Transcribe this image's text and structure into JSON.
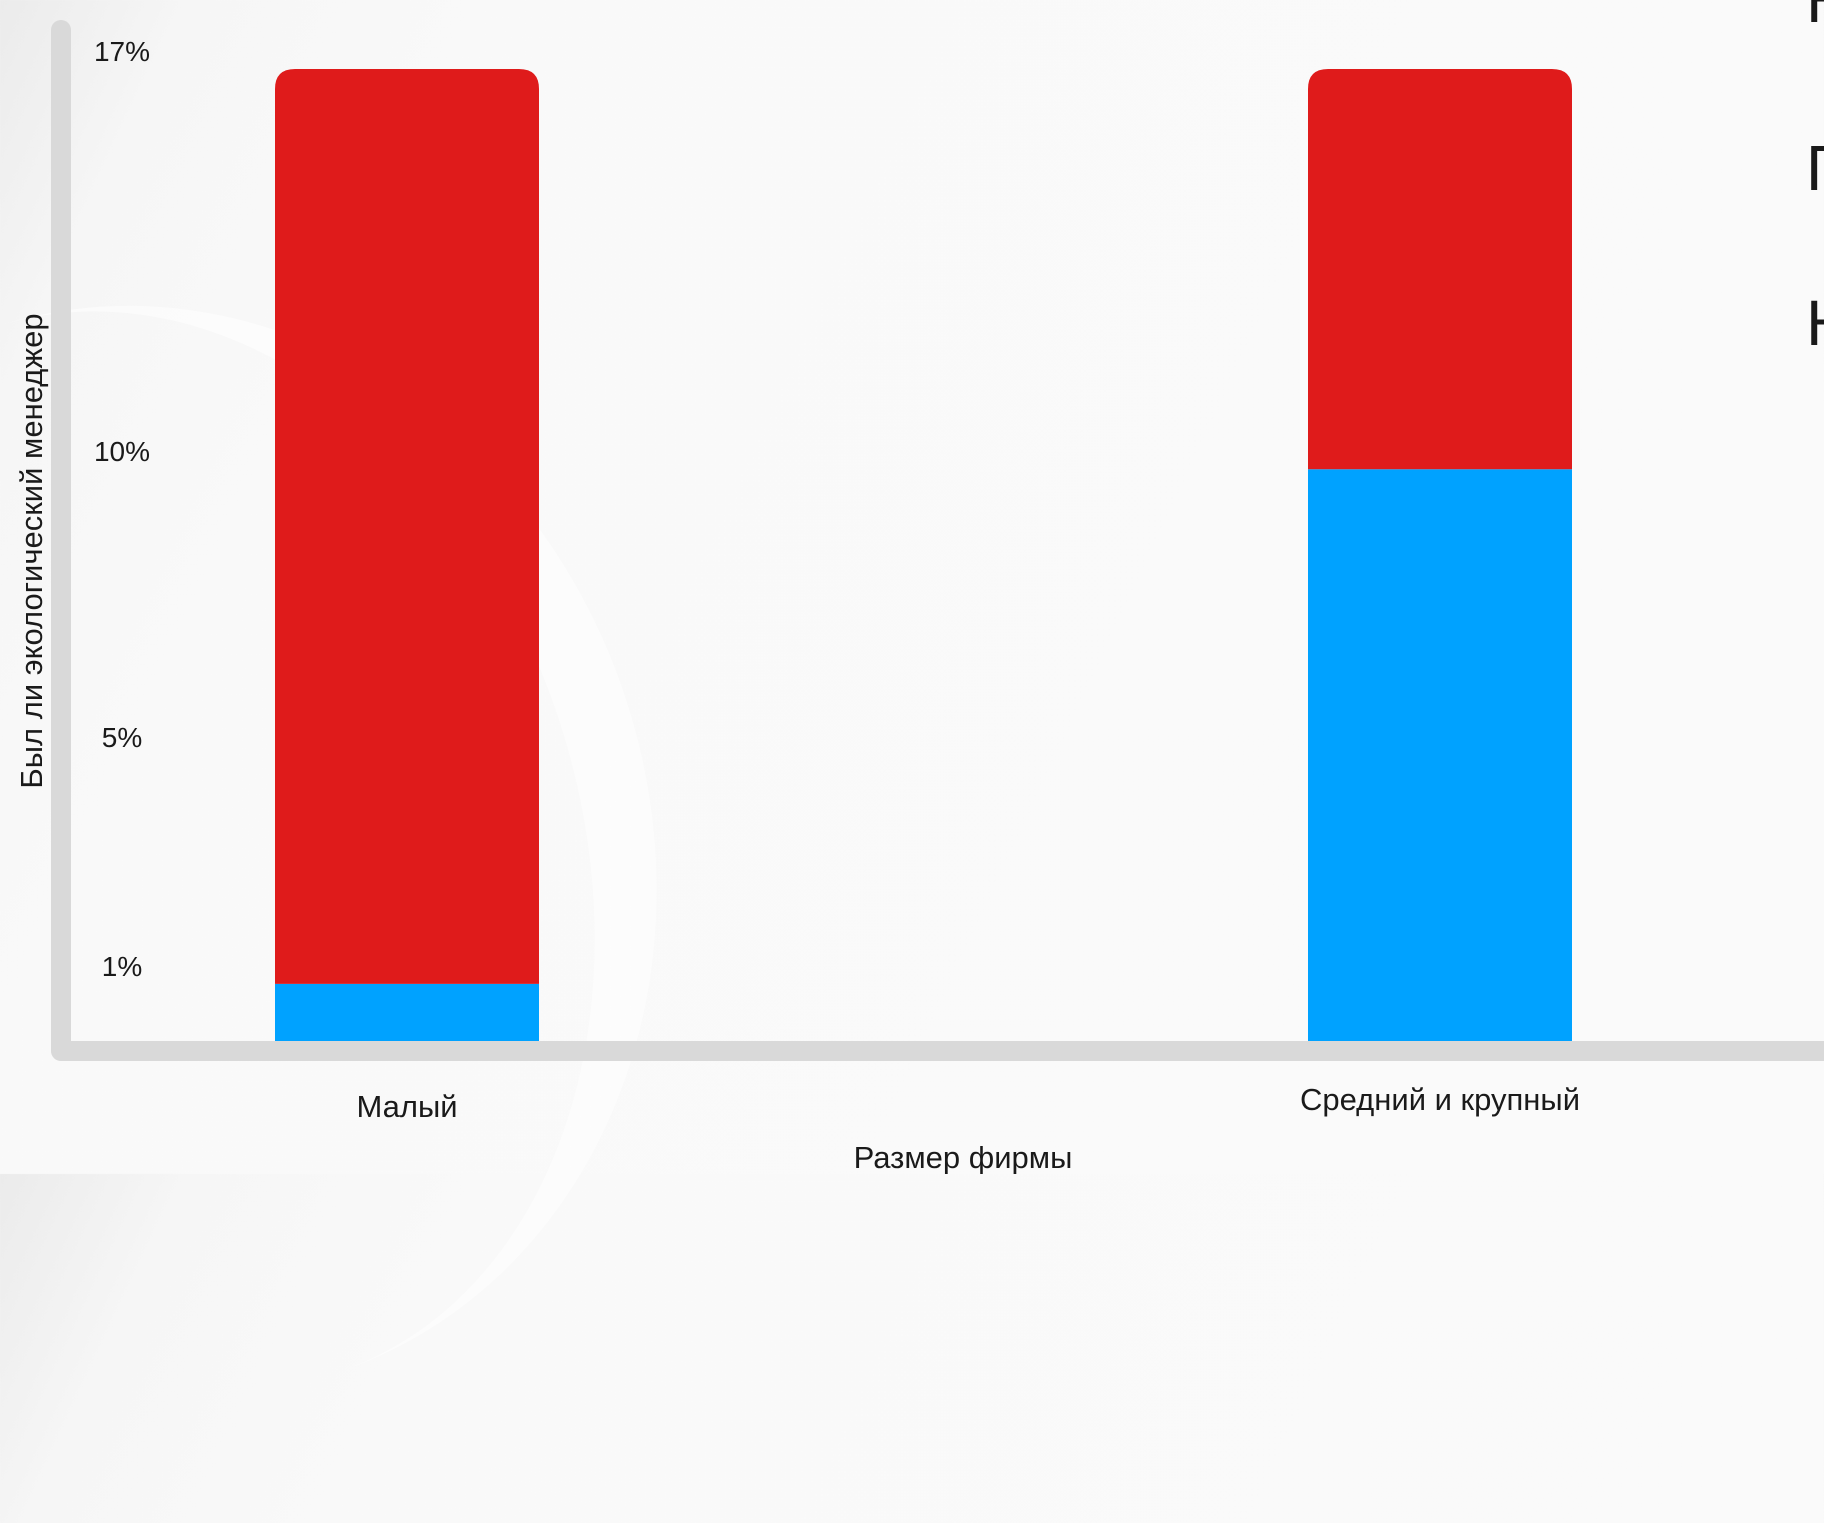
{
  "chart_data": {
    "type": "bar",
    "stacked": true,
    "categories": [
      "Малый",
      "Средний и крупный"
    ],
    "series": [
      {
        "color": "#00a2ff",
        "values": [
          1,
          10
        ]
      },
      {
        "color": "#df1b1b",
        "values": [
          16,
          7
        ]
      }
    ],
    "xlabel": "Размер фирмы",
    "ylabel": "Был ли экологический менеджер",
    "yticks": [
      "1%",
      "5%",
      "10%",
      "17%"
    ],
    "ylim": [
      0,
      17
    ],
    "legend_position": "right",
    "legend_visible_fragments": [
      "Н",
      "П",
      "Н"
    ],
    "grid": false
  }
}
